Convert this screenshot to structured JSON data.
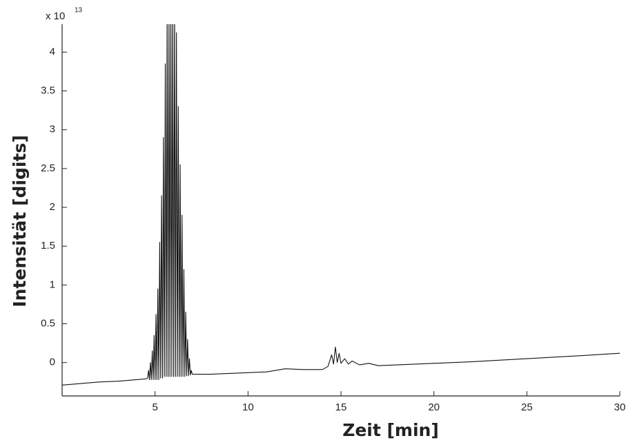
{
  "chart_data": {
    "type": "line",
    "x_label": "Zeit [min]",
    "y_label": "Intensität [digits]",
    "y_multiplier": "x 10",
    "y_exponent": "13",
    "xlim": [
      0,
      30
    ],
    "ylim": [
      -0.43,
      4.36
    ],
    "xticks": [
      5,
      10,
      15,
      20,
      25,
      30
    ],
    "yticks": [
      0,
      0.5,
      1,
      1.5,
      2,
      2.5,
      3,
      3.5,
      4
    ],
    "grid": false,
    "color": "#111111",
    "x": [
      0,
      1,
      2,
      3,
      4,
      4.5,
      4.6,
      4.65,
      4.7,
      4.75,
      4.8,
      4.85,
      4.9,
      4.95,
      5.0,
      5.05,
      5.1,
      5.15,
      5.2,
      5.25,
      5.3,
      5.35,
      5.4,
      5.45,
      5.5,
      5.55,
      5.6,
      5.65,
      5.7,
      5.75,
      5.8,
      5.85,
      5.9,
      5.95,
      6.0,
      6.05,
      6.1,
      6.15,
      6.2,
      6.25,
      6.3,
      6.35,
      6.4,
      6.45,
      6.5,
      6.55,
      6.6,
      6.65,
      6.7,
      6.75,
      6.8,
      6.85,
      6.9,
      6.95,
      7.0,
      7.5,
      8,
      9,
      10,
      11,
      12,
      13,
      14,
      14.3,
      14.5,
      14.6,
      14.7,
      14.8,
      14.9,
      15.0,
      15.2,
      15.4,
      15.6,
      16.0,
      16.5,
      17.0,
      18,
      20,
      22,
      25,
      28,
      30
    ],
    "values": [
      -0.29,
      -0.27,
      -0.25,
      -0.24,
      -0.22,
      -0.21,
      -0.2,
      -0.1,
      -0.22,
      0.0,
      -0.22,
      0.15,
      -0.22,
      0.35,
      -0.22,
      0.62,
      -0.22,
      0.95,
      -0.22,
      1.55,
      -0.2,
      2.15,
      -0.2,
      2.9,
      -0.18,
      3.85,
      -0.18,
      4.6,
      -0.18,
      4.6,
      -0.18,
      4.6,
      -0.18,
      4.6,
      -0.18,
      4.6,
      -0.18,
      4.25,
      -0.18,
      3.3,
      -0.18,
      2.55,
      -0.18,
      1.9,
      -0.18,
      1.2,
      -0.18,
      0.65,
      -0.17,
      0.3,
      -0.17,
      0.05,
      -0.16,
      -0.1,
      -0.15,
      -0.15,
      -0.15,
      -0.14,
      -0.13,
      -0.12,
      -0.08,
      -0.09,
      -0.09,
      -0.05,
      0.1,
      -0.02,
      0.2,
      0.0,
      0.12,
      -0.01,
      0.05,
      -0.02,
      0.02,
      -0.03,
      -0.01,
      -0.04,
      -0.03,
      -0.01,
      0.01,
      0.05,
      0.09,
      0.12
    ]
  }
}
